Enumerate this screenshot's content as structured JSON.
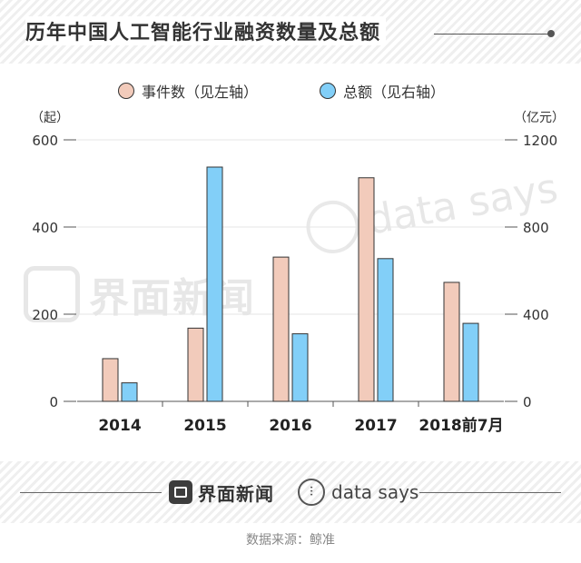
{
  "header": {
    "title": "历年中国人工智能行业融资数量及总额"
  },
  "legend": {
    "events_label": "事件数（见左轴）",
    "total_label": "总额（见右轴）"
  },
  "colors": {
    "events": "#f2cbbb",
    "total": "#82cff8",
    "outline": "#333333",
    "grid": "#e6e6e6"
  },
  "chart_data": {
    "type": "bar",
    "categories": [
      "2014",
      "2015",
      "2016",
      "2017",
      "2018前7月"
    ],
    "series": [
      {
        "name": "事件数（见左轴）",
        "axis": "left",
        "values": [
          98,
          168,
          331,
          513,
          273
        ]
      },
      {
        "name": "总额（见右轴）",
        "axis": "right",
        "values": [
          85,
          1075,
          310,
          655,
          358
        ]
      }
    ],
    "left_axis": {
      "unit": "（起）",
      "ylim": [
        0,
        600
      ],
      "ticks": [
        0,
        200,
        400,
        600
      ]
    },
    "right_axis": {
      "unit": "（亿元）",
      "ylim": [
        0,
        1200
      ],
      "ticks": [
        0,
        400,
        800,
        1200
      ]
    },
    "grid": true,
    "legend_position": "top"
  },
  "footer": {
    "brand_jiemian": "界面新闻",
    "brand_datasays": "data says",
    "source": "数据来源：鲸准"
  },
  "watermark": {
    "jiemian": "界面新闻",
    "datasays": "data says"
  }
}
